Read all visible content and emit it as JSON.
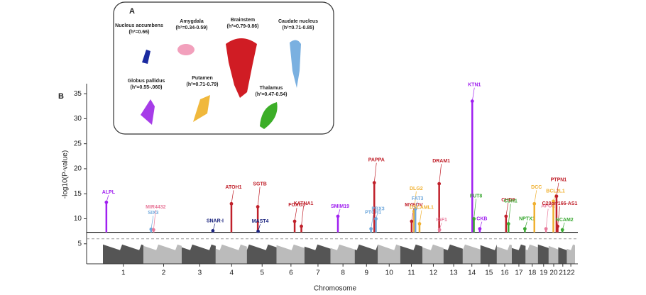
{
  "inset": {
    "label": "A",
    "regions": [
      {
        "name": "Nucleus accumbens",
        "h2": "(h²=0.66)",
        "color": "#1a2aa0"
      },
      {
        "name": "Amygdala",
        "h2": "(h²=0.34-0.59)",
        "color": "#f2a0bc"
      },
      {
        "name": "Brainstem",
        "h2": "(h²=0.79-0.86)",
        "color": "#d01c24"
      },
      {
        "name": "Caudate nucleus",
        "h2": "(h²=0.71-0.85)",
        "color": "#7ab0e0"
      },
      {
        "name": "Globus pallidus",
        "h2": "(h²=0.55-.060)",
        "color": "#a63ce8"
      },
      {
        "name": "Putamen",
        "h2": "(h²=0.71-0.79)",
        "color": "#f0b83c"
      },
      {
        "name": "Thalamus",
        "h2": "(h²=0.47-0.54)",
        "color": "#3cae28"
      }
    ]
  },
  "chart_data": {
    "type": "scatter",
    "panel_label": "B",
    "ylabel": "-log10(P-value)",
    "xlabel": "Chromosome",
    "xlim": [
      0,
      2881
    ],
    "ylim": [
      1,
      37
    ],
    "yticks": [
      5,
      10,
      15,
      20,
      25,
      30,
      35
    ],
    "xticks": [
      {
        "value": 124.5,
        "label": "1"
      },
      {
        "value": 370.5,
        "label": "2"
      },
      {
        "value": 591,
        "label": "3"
      },
      {
        "value": 785.5,
        "label": "4"
      },
      {
        "value": 971.5,
        "label": "5"
      },
      {
        "value": 1147.5,
        "label": "6"
      },
      {
        "value": 1312.5,
        "label": "7"
      },
      {
        "value": 1465,
        "label": "8"
      },
      {
        "value": 1608.5,
        "label": "9"
      },
      {
        "value": 1747,
        "label": "10"
      },
      {
        "value": 1882.5,
        "label": "11"
      },
      {
        "value": 2016.5,
        "label": "12"
      },
      {
        "value": 2140.5,
        "label": "13"
      },
      {
        "value": 2251.5,
        "label": "14"
      },
      {
        "value": 2356,
        "label": "15"
      },
      {
        "value": 2452,
        "label": "16"
      },
      {
        "value": 2538.5,
        "label": "17"
      },
      {
        "value": 2620,
        "label": "18"
      },
      {
        "value": 2689.5,
        "label": "19"
      },
      {
        "value": 2751,
        "label": "20"
      },
      {
        "value": 2806.5,
        "label": "21"
      },
      {
        "value": 2855.5,
        "label": "22"
      }
    ],
    "significance_line": 7.3,
    "suggestive_line": 6,
    "background_colors": [
      "#555555",
      "#bbbbbb"
    ],
    "series": [
      {
        "name": "ALPL",
        "color": "#a020f0",
        "x": [
          21
        ],
        "values": [
          13.3
        ]
      },
      {
        "name": "SIX3",
        "color": "#6fa8dc",
        "x": [
          294
        ],
        "values": [
          7.9
        ]
      },
      {
        "name": "MIR4432",
        "color": "#e8799a",
        "x": [
          309
        ],
        "values": [
          7.8
        ]
      },
      {
        "name": "SNAR-I",
        "color": "#1a237e",
        "x": [
          671
        ],
        "values": [
          7.6
        ]
      },
      {
        "name": "ATOH1",
        "color": "#c0202a",
        "x": [
          784
        ],
        "values": [
          13
        ]
      },
      {
        "name": "SGTB",
        "color": "#c0202a",
        "x": [
          945
        ],
        "values": [
          12.4
        ]
      },
      {
        "name": "MAST4",
        "color": "#1a237e",
        "x": [
          947
        ],
        "values": [
          7.5
        ]
      },
      {
        "name": "FOXO3",
        "color": "#c0202a",
        "x": [
          1170
        ],
        "values": [
          9.5
        ]
      },
      {
        "name": "KATNA1",
        "color": "#c0202a",
        "x": [
          1211
        ],
        "values": [
          8.5
        ]
      },
      {
        "name": "SMIM19",
        "color": "#a020f0",
        "x": [
          1434
        ],
        "values": [
          10.5
        ]
      },
      {
        "name": "PTCH1",
        "color": "#6fa8dc",
        "x": [
          1636
        ],
        "values": [
          8
        ]
      },
      {
        "name": "PAPPA",
        "color": "#c0202a",
        "x": [
          1656
        ],
        "values": [
          17.2
        ]
      },
      {
        "name": "PBX3",
        "color": "#6fa8dc",
        "x": [
          1666
        ],
        "values": [
          10
        ]
      },
      {
        "name": "MYEOV",
        "color": "#c0202a",
        "x": [
          1884
        ],
        "values": [
          9.5
        ]
      },
      {
        "name": "DLG2",
        "color": "#f0b030",
        "x": [
          1899
        ],
        "values": [
          11.5
        ]
      },
      {
        "name": "FAT3",
        "color": "#6fa8dc",
        "x": [
          1907
        ],
        "values": [
          12
        ]
      },
      {
        "name": "DSCAML1",
        "color": "#f0b030",
        "x": [
          1932
        ],
        "values": [
          9
        ]
      },
      {
        "name": "DRAM1",
        "color": "#c0202a",
        "x": [
          2052
        ],
        "values": [
          17
        ]
      },
      {
        "name": "IGF1",
        "color": "#e8799a",
        "x": [
          2054
        ],
        "values": [
          7.8
        ]
      },
      {
        "name": "KTN1",
        "color": "#a020f0",
        "x": [
          2254
        ],
        "values": [
          33.5
        ]
      },
      {
        "name": "FUT8",
        "color": "#3aa832",
        "x": [
          2264
        ],
        "values": [
          10
        ]
      },
      {
        "name": "CKB",
        "color": "#a020f0",
        "x": [
          2300
        ],
        "values": [
          8
        ]
      },
      {
        "name": "CHD9",
        "color": "#c0202a",
        "x": [
          2460
        ],
        "values": [
          10.5
        ]
      },
      {
        "name": "CDH1",
        "color": "#3aa832",
        "x": [
          2475
        ],
        "values": [
          9
        ]
      },
      {
        "name": "NPTX1",
        "color": "#3aa832",
        "x": [
          2575
        ],
        "values": [
          8
        ]
      },
      {
        "name": "DCC",
        "color": "#f0b030",
        "x": [
          2633
        ],
        "values": [
          13
        ]
      },
      {
        "name": "APOE",
        "color": "#e8799a",
        "x": [
          2704
        ],
        "values": [
          8
        ]
      },
      {
        "name": "BCL2L1",
        "color": "#f0b030",
        "x": [
          2749
        ],
        "values": [
          13.5
        ]
      },
      {
        "name": "PTPN1",
        "color": "#c0202a",
        "x": [
          2768
        ],
        "values": [
          14.5
        ]
      },
      {
        "name": "C20orf166-AS1",
        "color": "#c0202a",
        "x": [
          2775
        ],
        "values": [
          8.5
        ]
      },
      {
        "name": "NCAM2",
        "color": "#3aa832",
        "x": [
          2804
        ],
        "values": [
          7.8
        ]
      }
    ]
  }
}
